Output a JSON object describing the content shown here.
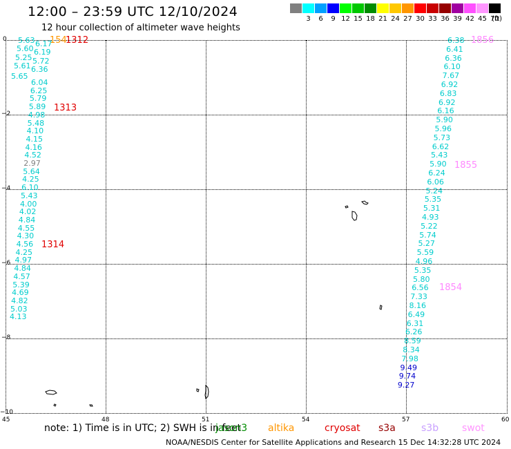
{
  "header": {
    "title": "12:00 – 23:59 UTC 12/10/2024",
    "subtitle": "12 hour collection of altimeter wave heights"
  },
  "legend": {
    "unit": "(ft)",
    "entries": [
      {
        "label": "",
        "color": "#808080"
      },
      {
        "label": "3",
        "color": "#00ffff"
      },
      {
        "label": "6",
        "color": "#00a0ff"
      },
      {
        "label": "9",
        "color": "#0000ff"
      },
      {
        "label": "12",
        "color": "#00ff00"
      },
      {
        "label": "15",
        "color": "#00c800"
      },
      {
        "label": "18",
        "color": "#008c00"
      },
      {
        "label": "21",
        "color": "#ffff00"
      },
      {
        "label": "24",
        "color": "#ffc800"
      },
      {
        "label": "27",
        "color": "#ff9600"
      },
      {
        "label": "30",
        "color": "#ff0000"
      },
      {
        "label": "33",
        "color": "#c80000"
      },
      {
        "label": "36",
        "color": "#960000"
      },
      {
        "label": "39",
        "color": "#a000a0"
      },
      {
        "label": "42",
        "color": "#ff50ff"
      },
      {
        "label": "45",
        "color": "#ff96ff"
      },
      {
        "label": "70",
        "color": "#000000"
      }
    ]
  },
  "axes": {
    "y_labels": [
      "0",
      "−2",
      "−4",
      "−6",
      "−8",
      "−10"
    ],
    "x_labels": [
      "45",
      "48",
      "51",
      "54",
      "57",
      "60"
    ]
  },
  "colors": {
    "cyan": "#00cccc",
    "gray": "#808080",
    "blue": "#0000cc",
    "red": "#e00000",
    "pink": "#ff88ff",
    "orange": "#ff9600"
  },
  "left_track": {
    "values": [
      "5.63",
      "6.17",
      "5.60",
      "6.19",
      "5.25",
      "5.72",
      "5.61",
      "6.36",
      "5.65",
      "6.04",
      "6.25",
      "5.79",
      "5.89",
      "4.98",
      "5.48",
      "4.10",
      "4.15",
      "4.16",
      "4.52",
      "2.97",
      "5.64",
      "4.25",
      "6.10",
      "5.43",
      "4.00",
      "4.02",
      "4.84",
      "4.55",
      "4.30",
      "4.56",
      "4.25",
      "4.97",
      "4.84",
      "4.57",
      "5.39",
      "4.69",
      "4.82",
      "5.03",
      "4.13"
    ],
    "colors": [
      "cyan",
      "cyan",
      "cyan",
      "cyan",
      "cyan",
      "cyan",
      "cyan",
      "cyan",
      "cyan",
      "cyan",
      "cyan",
      "cyan",
      "cyan",
      "cyan",
      "cyan",
      "cyan",
      "cyan",
      "cyan",
      "cyan",
      "gray",
      "cyan",
      "cyan",
      "cyan",
      "cyan",
      "cyan",
      "cyan",
      "cyan",
      "cyan",
      "cyan",
      "cyan",
      "cyan",
      "cyan",
      "cyan",
      "cyan",
      "cyan",
      "cyan",
      "cyan",
      "cyan",
      "cyan"
    ]
  },
  "right_track": {
    "values": [
      "6.38",
      "6.41",
      "6.36",
      "6.10",
      "7.67",
      "6.92",
      "6.83",
      "6.92",
      "6.16",
      "5.90",
      "5.96",
      "5.73",
      "6.62",
      "5.43",
      "5.90",
      "6.24",
      "6.06",
      "5.24",
      "5.35",
      "5.31",
      "4.93",
      "5.22",
      "5.74",
      "5.27",
      "5.59",
      "4.96",
      "5.35",
      "5.80",
      "6.56",
      "7.33",
      "8.16",
      "6.49",
      "6.31",
      "6.26",
      "8.59",
      "8.34",
      "7.98",
      "9.49",
      "9.74",
      "9.27"
    ],
    "colors": [
      "cyan",
      "cyan",
      "cyan",
      "cyan",
      "cyan",
      "cyan",
      "cyan",
      "cyan",
      "cyan",
      "cyan",
      "cyan",
      "cyan",
      "cyan",
      "cyan",
      "cyan",
      "cyan",
      "cyan",
      "cyan",
      "cyan",
      "cyan",
      "cyan",
      "cyan",
      "cyan",
      "cyan",
      "cyan",
      "cyan",
      "cyan",
      "cyan",
      "cyan",
      "cyan",
      "cyan",
      "cyan",
      "cyan",
      "cyan",
      "cyan",
      "cyan",
      "cyan",
      "blue",
      "blue",
      "blue"
    ]
  },
  "time_marks": [
    {
      "label": "1312",
      "color": "red"
    },
    {
      "label": "1313",
      "color": "red"
    },
    {
      "label": "1314",
      "color": "red"
    },
    {
      "label": "1856",
      "color": "pink"
    },
    {
      "label": "1855",
      "color": "pink"
    },
    {
      "label": "1854",
      "color": "pink"
    }
  ],
  "overlap_label": {
    "label": "154",
    "color": "orange"
  },
  "note": {
    "text": "note:  1) Time is in UTC; 2) SWH is in feet",
    "satellites": [
      {
        "name": "jason3",
        "color": "#008c00"
      },
      {
        "name": "altika",
        "color": "#ff9600"
      },
      {
        "name": "cryosat",
        "color": "#e00000"
      },
      {
        "name": "s3a",
        "color": "#960000"
      },
      {
        "name": "s3b",
        "color": "#c8a0ff"
      },
      {
        "name": "swot",
        "color": "#ff96ff"
      }
    ]
  },
  "credit": "NOAA/NESDIS Center for Satellite Applications and Research    15 Dec 14:32:28 UTC 2024"
}
